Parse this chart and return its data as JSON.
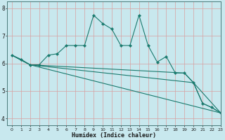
{
  "xlabel": "Humidex (Indice chaleur)",
  "xlim": [
    -0.5,
    23
  ],
  "ylim": [
    3.75,
    8.25
  ],
  "yticks": [
    4,
    5,
    6,
    7,
    8
  ],
  "xticks": [
    0,
    1,
    2,
    3,
    4,
    5,
    6,
    7,
    8,
    9,
    10,
    11,
    12,
    13,
    14,
    15,
    16,
    17,
    18,
    19,
    20,
    21,
    22,
    23
  ],
  "bg_color": "#c8e8ee",
  "grid_color": "#d8a0a0",
  "line_color": "#1a7a6e",
  "line1_x": [
    0,
    1,
    2,
    3,
    4,
    5,
    6,
    7,
    8,
    9,
    10,
    11,
    12,
    13,
    14,
    15,
    16,
    17,
    18,
    19,
    20,
    21,
    22,
    23
  ],
  "line1_y": [
    6.3,
    6.15,
    5.95,
    5.95,
    6.3,
    6.35,
    6.65,
    6.65,
    6.65,
    7.75,
    7.45,
    7.25,
    6.65,
    6.65,
    7.75,
    6.65,
    6.05,
    6.25,
    5.65,
    5.65,
    5.3,
    4.55,
    4.4,
    4.2
  ],
  "line2_x": [
    0,
    2,
    23
  ],
  "line2_y": [
    6.3,
    5.95,
    4.2
  ],
  "line3_x": [
    0,
    2,
    20,
    23
  ],
  "line3_y": [
    6.3,
    5.95,
    5.3,
    4.2
  ],
  "line4_x": [
    0,
    2,
    19,
    20,
    21,
    22,
    23
  ],
  "line4_y": [
    6.3,
    5.95,
    5.65,
    5.3,
    4.55,
    4.4,
    4.2
  ]
}
